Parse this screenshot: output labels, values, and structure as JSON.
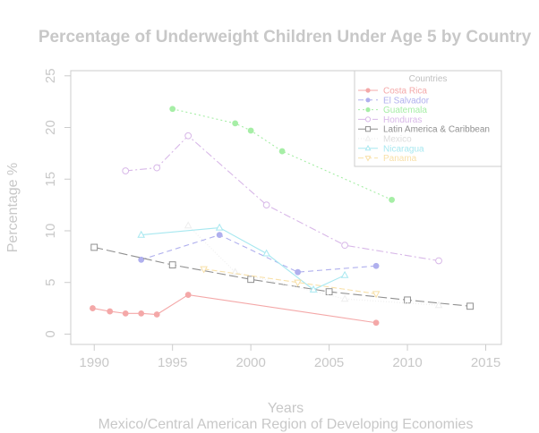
{
  "chart_data": {
    "type": "line",
    "title": "Percentage of Underweight Children Under Age 5 by Country",
    "xlabel": "Years",
    "subtitle": "Mexico/Central American Region of Developing Economies",
    "ylabel": "Percentage %",
    "xlim": [
      1988.5,
      2016
    ],
    "ylim": [
      -1,
      25.5
    ],
    "xticks": [
      "1990",
      "1995",
      "2000",
      "2005",
      "2010",
      "2015"
    ],
    "yticks": [
      "0",
      "5",
      "10",
      "15",
      "20",
      "25"
    ],
    "legend_title": "Countries",
    "legend_position": "top-right",
    "grid": false,
    "series": [
      {
        "name": "Costa Rica",
        "color": "#f4a8a8",
        "marker": "dot",
        "dash": "",
        "x": [
          1989.9,
          1991,
          1992,
          1993,
          1994,
          1996,
          2008
        ],
        "y": [
          2.5,
          2.2,
          2.0,
          2.0,
          1.9,
          3.8,
          1.1
        ]
      },
      {
        "name": "El Salvador",
        "color": "#b0b0ee",
        "marker": "dot",
        "dash": "6,4",
        "x": [
          1993,
          1998,
          2003,
          2008
        ],
        "y": [
          7.2,
          9.6,
          6.0,
          6.6
        ]
      },
      {
        "name": "Guatemala",
        "color": "#a6eea6",
        "marker": "dot",
        "dash": "2,3",
        "x": [
          1995,
          1999,
          2000,
          2002,
          2009
        ],
        "y": [
          21.8,
          20.4,
          19.7,
          17.7,
          13.0
        ]
      },
      {
        "name": "Honduras",
        "color": "#d8b8e8",
        "marker": "circle",
        "dash": "8,3,2,3",
        "x": [
          1992,
          1994,
          1996,
          2001,
          2006,
          2012
        ],
        "y": [
          15.8,
          16.1,
          19.2,
          12.5,
          8.6,
          7.1
        ]
      },
      {
        "name": "Latin America & Caribbean",
        "color": "#909090",
        "marker": "square",
        "dash": "10,4",
        "x": [
          1990,
          1995,
          2000,
          2005,
          2010,
          2014
        ],
        "y": [
          8.4,
          6.7,
          5.3,
          4.1,
          3.3,
          2.7
        ]
      },
      {
        "name": "Mexico",
        "color": "#eeeeee",
        "marker": "triangle",
        "dash": "1,2",
        "x": [
          1996,
          1999,
          2006,
          2012
        ],
        "y": [
          10.5,
          6.0,
          3.4,
          2.8
        ]
      },
      {
        "name": "Nicaragua",
        "color": "#a8e8f0",
        "marker": "triangle",
        "dash": "",
        "x": [
          1993,
          1998,
          2001,
          2004,
          2006
        ],
        "y": [
          9.6,
          10.3,
          7.8,
          4.3,
          5.7
        ]
      },
      {
        "name": "Panama",
        "color": "#f8e0a8",
        "marker": "invtriangle",
        "dash": "6,3",
        "x": [
          1997,
          2003,
          2008
        ],
        "y": [
          6.3,
          5.0,
          3.9
        ]
      }
    ]
  }
}
